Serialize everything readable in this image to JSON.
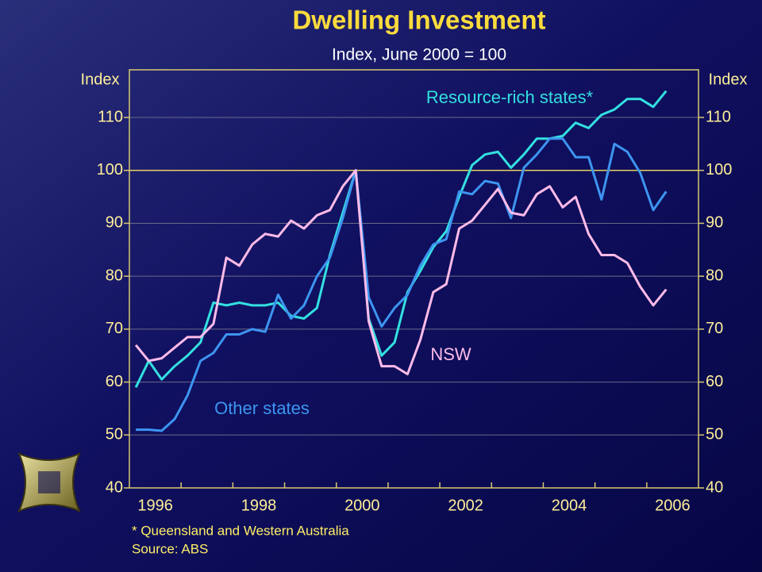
{
  "chart_data": {
    "type": "line",
    "title": "Dwelling Investment",
    "subtitle": "Index, June 2000 = 100",
    "y_label": "Index",
    "y2_label": "Index",
    "xlim": [
      1995.5,
      2006.5
    ],
    "xticks": [
      1996,
      1998,
      2000,
      2002,
      2004,
      2006
    ],
    "xtick_marks": [
      1996.5,
      1997.5,
      1998.5,
      1999.5,
      2000.5,
      2001.5,
      2002.5,
      2003.5,
      2004.5,
      2005.5
    ],
    "ylim": [
      40,
      119
    ],
    "yticks": [
      40,
      50,
      60,
      70,
      80,
      90,
      100,
      110
    ],
    "y2lim": [
      40,
      119
    ],
    "y2ticks": [
      40,
      50,
      60,
      70,
      80,
      90,
      100,
      110
    ],
    "grid": true,
    "reference_line": {
      "value": 100,
      "color": "#e8d060"
    },
    "x": [
      1995.625,
      1995.875,
      1996.125,
      1996.375,
      1996.625,
      1996.875,
      1997.125,
      1997.375,
      1997.625,
      1997.875,
      1998.125,
      1998.375,
      1998.625,
      1998.875,
      1999.125,
      1999.375,
      1999.625,
      1999.875,
      2000.125,
      2000.375,
      2000.625,
      2000.875,
      2001.125,
      2001.375,
      2001.625,
      2001.875,
      2002.125,
      2002.375,
      2002.625,
      2002.875,
      2003.125,
      2003.375,
      2003.625,
      2003.875,
      2004.125,
      2004.375,
      2004.625,
      2004.875,
      2005.125,
      2005.375,
      2005.625,
      2005.875
    ],
    "series": [
      {
        "name": "Resource-rich states*",
        "color": "#33e0e0",
        "values": [
          59,
          64,
          60.5,
          63,
          65,
          67.5,
          75,
          74.5,
          75,
          74.5,
          74.5,
          75,
          72.5,
          72,
          74,
          84,
          92,
          100,
          72,
          65,
          67.5,
          77,
          81,
          85.5,
          88.5,
          95,
          101,
          103,
          103.5,
          100.5,
          103,
          106,
          106,
          106.5,
          109,
          108,
          110.5,
          111.5,
          113.5,
          113.5,
          112,
          115
        ]
      },
      {
        "name": "Other states",
        "color": "#3d95f0",
        "values": [
          51,
          51,
          50.8,
          53,
          57.5,
          64,
          65.5,
          69,
          69,
          70,
          69.5,
          76.5,
          72,
          74.5,
          80,
          83.5,
          91,
          100,
          76,
          70.5,
          74,
          76.5,
          82,
          86,
          87,
          96,
          95.5,
          98,
          97.5,
          91,
          100.5,
          103,
          106,
          106,
          102.5,
          102.5,
          94.5,
          105,
          103.5,
          99.5,
          92.5,
          96
        ]
      },
      {
        "name": "NSW",
        "color": "#ffbbe8",
        "values": [
          67,
          64,
          64.5,
          66.5,
          68.5,
          68.5,
          71,
          83.5,
          82,
          86,
          88,
          87.5,
          90.5,
          89,
          91.5,
          92.5,
          97,
          100,
          71.5,
          63,
          63,
          61.5,
          68,
          77,
          78.5,
          89,
          90.5,
          93.5,
          96.5,
          92,
          91.5,
          95.5,
          97,
          93,
          95,
          88,
          84,
          84,
          82.5,
          78,
          74.5,
          77.5
        ]
      }
    ],
    "footnote": "*  Queensland and Western Australia",
    "source": "Source: ABS"
  }
}
